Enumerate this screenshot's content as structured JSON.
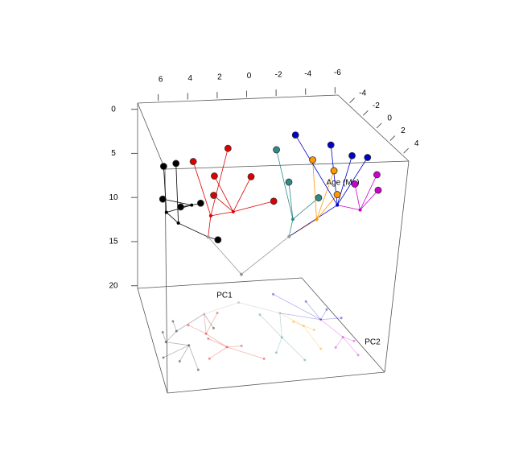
{
  "chart_data": {
    "type": "phylomorphospace3d",
    "x_label": "PC1",
    "y_label": "PC2",
    "z_label": "Age (Ma)",
    "xlim": [
      7.4,
      -6.2
    ],
    "xticks": [
      6,
      4,
      2,
      0,
      -2,
      -4,
      -6
    ],
    "ylim": [
      -5.5,
      5
    ],
    "yticks": [
      -4,
      -2,
      0,
      2,
      4
    ],
    "zlim": [
      -0.7,
      20.3
    ],
    "zticks": [
      0,
      5,
      10,
      15,
      20
    ],
    "nodes": [
      {
        "pc1": 0,
        "pc2": -3.4,
        "age": 17.2,
        "color": "#999999",
        "parent": null
      },
      {
        "pc1": 3,
        "pc2": -2.5,
        "age": 12,
        "color": "#999999",
        "parent": 0
      },
      {
        "pc1": -2.5,
        "pc2": -2,
        "age": 12,
        "color": "#999999",
        "parent": 0
      },
      {
        "pc1": 5.5,
        "pc2": -1,
        "age": 9,
        "color": "#000000",
        "parent": 1
      },
      {
        "pc1": 3.5,
        "pc2": -0.5,
        "age": 8,
        "color": "#dd0000",
        "parent": 1
      },
      {
        "pc1": 6.5,
        "pc2": 0,
        "age": 7,
        "color": "#000000",
        "parent": 3
      },
      {
        "pc1": 5,
        "pc2": 0.5,
        "age": 6,
        "color": "#000000",
        "parent": 5
      },
      {
        "pc1": 2.5,
        "pc2": 1,
        "age": 6.5,
        "color": "#dd0000",
        "parent": 4
      },
      {
        "pc1": -1.5,
        "pc2": 0.5,
        "age": 8,
        "color": "#2e8b8b",
        "parent": 2
      },
      {
        "pc1": -3.5,
        "pc2": -0.5,
        "age": 9,
        "color": "#ff9900",
        "parent": 2
      },
      {
        "pc1": -5,
        "pc2": -1,
        "age": 8,
        "color": "#0000cc",
        "parent": 2
      },
      {
        "pc1": -5.5,
        "pc2": 1,
        "age": 7,
        "color": "#cc00cc",
        "parent": 10
      },
      {
        "pc1": 2.8,
        "pc2": -1,
        "age": 11,
        "color": "#000000",
        "parent": 1
      },
      {
        "pc1": 6.5,
        "pc2": -1,
        "age": 3,
        "color": "#000000",
        "parent": 5
      },
      {
        "pc1": 7,
        "pc2": 1.5,
        "age": 4.5,
        "color": "#000000",
        "parent": 6
      },
      {
        "pc1": 6,
        "pc2": 2,
        "age": 5,
        "color": "#000000",
        "parent": 6
      },
      {
        "pc1": 5.5,
        "pc2": -2,
        "age": 3.5,
        "color": "#000000",
        "parent": 3
      },
      {
        "pc1": 5,
        "pc2": 3,
        "age": 4,
        "color": "#000000",
        "parent": 6
      },
      {
        "pc1": 4.5,
        "pc2": -1.5,
        "age": 3,
        "color": "#dd0000",
        "parent": 4
      },
      {
        "pc1": 3.5,
        "pc2": 0,
        "age": 3.5,
        "color": "#dd0000",
        "parent": 7
      },
      {
        "pc1": 4,
        "pc2": 2,
        "age": 4,
        "color": "#dd0000",
        "parent": 7
      },
      {
        "pc1": 2,
        "pc2": -2.5,
        "age": 2.5,
        "color": "#dd0000",
        "parent": 4
      },
      {
        "pc1": 1.5,
        "pc2": 1,
        "age": 3,
        "color": "#dd0000",
        "parent": 7
      },
      {
        "pc1": 0.5,
        "pc2": 2.5,
        "age": 4.5,
        "color": "#dd0000",
        "parent": 7
      },
      {
        "pc1": -1,
        "pc2": -2,
        "age": 2.5,
        "color": "#2e8b8b",
        "parent": 8
      },
      {
        "pc1": -0.5,
        "pc2": 2,
        "age": 3,
        "color": "#2e8b8b",
        "parent": 8
      },
      {
        "pc1": -2,
        "pc2": 3,
        "age": 4,
        "color": "#2e8b8b",
        "parent": 8
      },
      {
        "pc1": -3,
        "pc2": -1,
        "age": 3,
        "color": "#ff9900",
        "parent": 9
      },
      {
        "pc1": -3.5,
        "pc2": 2,
        "age": 4.5,
        "color": "#ff9900",
        "parent": 9
      },
      {
        "pc1": -4,
        "pc2": 0,
        "age": 3.5,
        "color": "#ff9900",
        "parent": 9
      },
      {
        "pc1": -3,
        "pc2": -4,
        "age": 2.5,
        "color": "#0000cc",
        "parent": 10
      },
      {
        "pc1": -5,
        "pc2": -3,
        "age": 3,
        "color": "#0000cc",
        "parent": 10
      },
      {
        "pc1": -6,
        "pc2": -2,
        "age": 3.5,
        "color": "#0000cc",
        "parent": 10
      },
      {
        "pc1": -6.5,
        "pc2": -1,
        "age": 3,
        "color": "#0000cc",
        "parent": 10
      },
      {
        "pc1": -4.5,
        "pc2": 2,
        "age": 3.5,
        "color": "#cc00cc",
        "parent": 11
      },
      {
        "pc1": -5.5,
        "pc2": 3,
        "age": 3.5,
        "color": "#cc00cc",
        "parent": 11
      },
      {
        "pc1": -6,
        "pc2": 1.5,
        "age": 3,
        "color": "#cc00cc",
        "parent": 11
      }
    ]
  }
}
